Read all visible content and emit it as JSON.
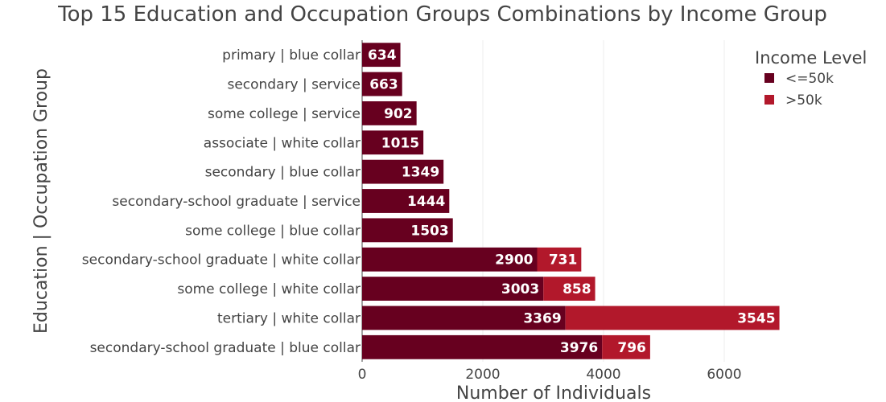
{
  "chart_data": {
    "type": "bar",
    "orientation": "horizontal",
    "barmode": "stack",
    "title": "Top 15 Education and Occupation Groups Combinations by Income Group",
    "xlabel": "Number of Individuals",
    "ylabel": "Education | Occupation Group",
    "xlim": [
      0,
      7000
    ],
    "xticks": [
      0,
      2000,
      4000,
      6000
    ],
    "grid": true,
    "legend": {
      "title": "Income Level",
      "placement": "top-right"
    },
    "categories": [
      "primary | blue collar",
      "secondary | service",
      "some college | service",
      "associate | white collar",
      "secondary | blue collar",
      "secondary-school graduate | service",
      "some college | blue collar",
      "secondary-school graduate | white collar",
      "some college | white collar",
      "tertiary | white collar",
      "secondary-school graduate | blue collar"
    ],
    "series": [
      {
        "name": "<=50k",
        "color": "#67001f",
        "values": [
          634,
          663,
          902,
          1015,
          1349,
          1444,
          1503,
          2900,
          3003,
          3369,
          3976
        ]
      },
      {
        "name": ">50k",
        "color": "#b2182b",
        "values": [
          null,
          null,
          null,
          null,
          null,
          null,
          null,
          731,
          858,
          3545,
          796
        ]
      }
    ]
  }
}
